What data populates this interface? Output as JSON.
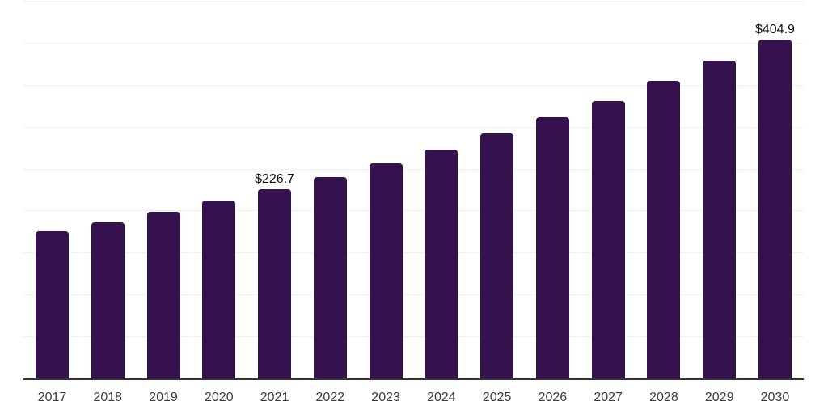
{
  "chart": {
    "background_color": "#ffffff",
    "bar_color": "#35124e",
    "gridline_color": "#f0f0f0",
    "axis_line_color": "#333333",
    "tick_label_color": "#3c3c3c",
    "value_label_color": "#111111"
  },
  "chart_data": {
    "type": "bar",
    "title": "",
    "xlabel": "",
    "ylabel": "",
    "categories": [
      "2017",
      "2018",
      "2019",
      "2020",
      "2021",
      "2022",
      "2023",
      "2024",
      "2025",
      "2026",
      "2027",
      "2028",
      "2029",
      "2030"
    ],
    "values": [
      176.6,
      186.5,
      199.0,
      212.7,
      226.7,
      240.9,
      257.5,
      274.1,
      292.7,
      311.9,
      331.9,
      355.5,
      379.7,
      404.9
    ],
    "point_labels": {
      "2021": "$226.7",
      "2030": "$404.9"
    },
    "ylim": [
      0,
      450
    ],
    "gridline_step": 50,
    "y_tick_labels_visible": false,
    "grid": "horizontal",
    "legend": "none"
  }
}
